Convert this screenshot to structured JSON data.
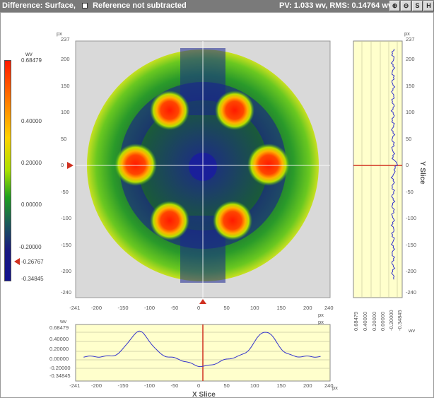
{
  "title_bar": {
    "label": "Difference: Surface,",
    "reference_label": "Reference not subtracted",
    "stats": "PV: 1.033 wv, RMS: 0.14764 wv",
    "buttons": [
      {
        "name": "zoom-in-icon",
        "glyph": "⊕"
      },
      {
        "name": "zoom-out-icon",
        "glyph": "⊖"
      },
      {
        "name": "settings-icon",
        "glyph": "S"
      },
      {
        "name": "help-icon",
        "glyph": "H"
      }
    ]
  },
  "colorbar": {
    "unit": "wv",
    "labels": [
      "0.68479",
      "0.40000",
      "0.20000",
      "0.00000",
      "-0.20000",
      "-0.26767",
      "-0.34845"
    ],
    "range": [
      -0.34845,
      0.68479
    ]
  },
  "main_plot": {
    "x_unit": "px",
    "y_unit": "px",
    "x_ticks": [
      "-241",
      "-200",
      "-150",
      "-100",
      "-50",
      "0",
      "50",
      "100",
      "150",
      "200",
      "240"
    ],
    "y_ticks": [
      "237",
      "200",
      "150",
      "100",
      "50",
      "0",
      "-50",
      "-100",
      "-150",
      "-200",
      "-240"
    ]
  },
  "y_slice": {
    "title": "Y Slice",
    "unit_top": "px",
    "y_ticks": [
      "237",
      "200",
      "150",
      "100",
      "50",
      "0",
      "-50",
      "-100",
      "-150",
      "-200",
      "-240"
    ],
    "x_ticks": [
      "0.68479",
      "0.40000",
      "0.20000",
      "0.00000",
      "-0.20000",
      "-0.34845"
    ],
    "x_unit": "wv"
  },
  "x_slice": {
    "title": "X Slice",
    "unit_left": "wv",
    "unit_right": "px",
    "y_ticks": [
      "0.68479",
      "0.40000",
      "0.20000",
      "0.00000",
      "-0.20000",
      "-0.34845"
    ],
    "x_ticks": [
      "-241",
      "-200",
      "-150",
      "-100",
      "-50",
      "0",
      "50",
      "100",
      "150",
      "200",
      "240"
    ],
    "x_unit": "px"
  },
  "colors": {
    "panel_bg": "#ffffcc",
    "trace": "#3333cc",
    "cursor": "#d03020",
    "background_grey": "#d9d9d9"
  }
}
